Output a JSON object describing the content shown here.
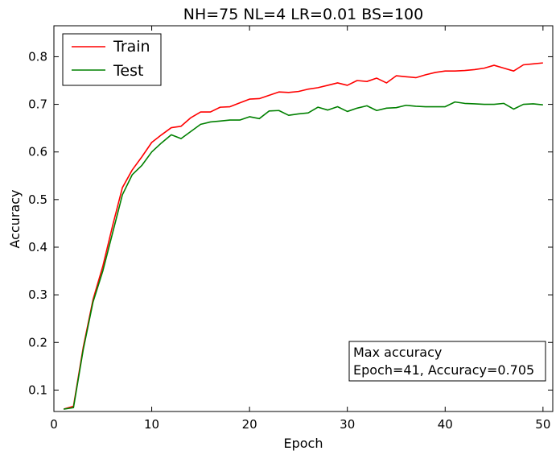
{
  "chart_data": {
    "type": "line",
    "title": "NH=75 NL=4 LR=0.01 BS=100",
    "xlabel": "Epoch",
    "ylabel": "Accuracy",
    "xlim": [
      0,
      51
    ],
    "ylim": [
      0.055,
      0.865
    ],
    "xticks": [
      0,
      10,
      20,
      30,
      40,
      50
    ],
    "yticks": [
      0.1,
      0.2,
      0.3,
      0.4,
      0.5,
      0.6,
      0.7,
      0.8
    ],
    "grid": false,
    "legend_position": "top-left",
    "x": [
      1,
      2,
      3,
      4,
      5,
      6,
      7,
      8,
      9,
      10,
      11,
      12,
      13,
      14,
      15,
      16,
      17,
      18,
      19,
      20,
      21,
      22,
      23,
      24,
      25,
      26,
      27,
      28,
      29,
      30,
      31,
      32,
      33,
      34,
      35,
      36,
      37,
      38,
      39,
      40,
      41,
      42,
      43,
      44,
      45,
      46,
      47,
      48,
      49,
      50
    ],
    "series": [
      {
        "name": "Train",
        "color": "#ff0000",
        "values": [
          0.06,
          0.066,
          0.19,
          0.29,
          0.36,
          0.445,
          0.525,
          0.562,
          0.59,
          0.62,
          0.636,
          0.651,
          0.654,
          0.672,
          0.684,
          0.684,
          0.694,
          0.695,
          0.703,
          0.711,
          0.712,
          0.719,
          0.726,
          0.725,
          0.727,
          0.732,
          0.735,
          0.74,
          0.745,
          0.74,
          0.75,
          0.748,
          0.755,
          0.745,
          0.76,
          0.758,
          0.756,
          0.762,
          0.767,
          0.77,
          0.77,
          0.771,
          0.773,
          0.776,
          0.782,
          0.776,
          0.77,
          0.783,
          0.785,
          0.787
        ]
      },
      {
        "name": "Test",
        "color": "#008000",
        "values": [
          0.06,
          0.063,
          0.185,
          0.285,
          0.35,
          0.43,
          0.51,
          0.552,
          0.572,
          0.6,
          0.619,
          0.636,
          0.628,
          0.643,
          0.658,
          0.663,
          0.665,
          0.667,
          0.667,
          0.674,
          0.67,
          0.686,
          0.687,
          0.677,
          0.68,
          0.682,
          0.694,
          0.688,
          0.695,
          0.685,
          0.692,
          0.697,
          0.687,
          0.692,
          0.693,
          0.698,
          0.696,
          0.695,
          0.695,
          0.695,
          0.705,
          0.702,
          0.701,
          0.7,
          0.7,
          0.702,
          0.69,
          0.7,
          0.701,
          0.699
        ]
      }
    ],
    "annotation": {
      "line1": "Max accuracy",
      "line2": "Epoch=41, Accuracy=0.705"
    }
  }
}
